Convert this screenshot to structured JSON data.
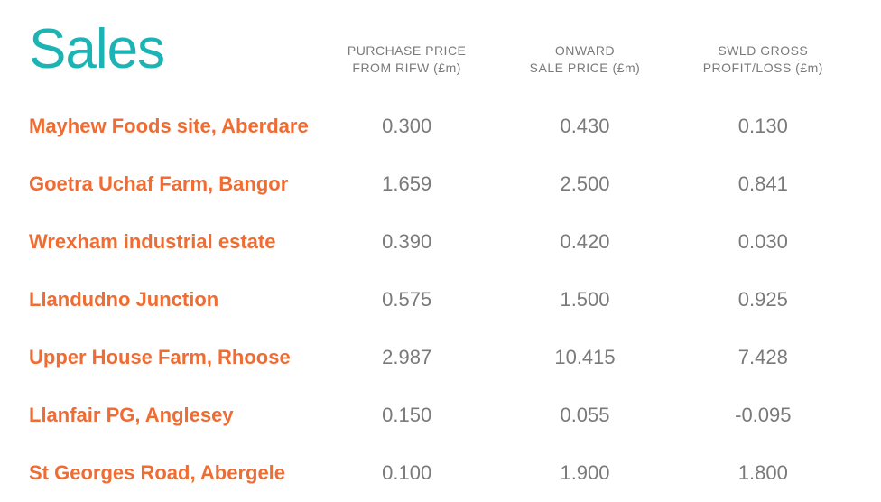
{
  "title": "Sales",
  "colors": {
    "title": "#1bb3b3",
    "row_label": "#ef6c33",
    "text": "#7a7a7a",
    "background": "#ffffff"
  },
  "typography": {
    "title_fontsize": 62,
    "header_fontsize": 14,
    "row_label_fontsize": 22,
    "cell_fontsize": 22
  },
  "columns": [
    {
      "line1": "PURCHASE PRICE",
      "line2": "FROM RIFW (£m)"
    },
    {
      "line1": "ONWARD",
      "line2": "SALE PRICE (£m)"
    },
    {
      "line1": "SWLD GROSS",
      "line2": "PROFIT/LOSS (£m)"
    }
  ],
  "rows": [
    {
      "label": "Mayhew Foods site, Aberdare",
      "values": [
        "0.300",
        "0.430",
        "0.130"
      ]
    },
    {
      "label": "Goetra Uchaf Farm, Bangor",
      "values": [
        "1.659",
        "2.500",
        "0.841"
      ]
    },
    {
      "label": "Wrexham industrial estate",
      "values": [
        "0.390",
        "0.420",
        "0.030"
      ]
    },
    {
      "label": "Llandudno Junction",
      "values": [
        "0.575",
        "1.500",
        "0.925"
      ]
    },
    {
      "label": "Upper House Farm, Rhoose",
      "values": [
        "2.987",
        "10.415",
        "7.428"
      ]
    },
    {
      "label": "Llanfair PG, Anglesey",
      "values": [
        "0.150",
        "0.055",
        "-0.095"
      ]
    },
    {
      "label": "St Georges Road, Abergele",
      "values": [
        "0.100",
        "1.900",
        "1.800"
      ]
    }
  ]
}
